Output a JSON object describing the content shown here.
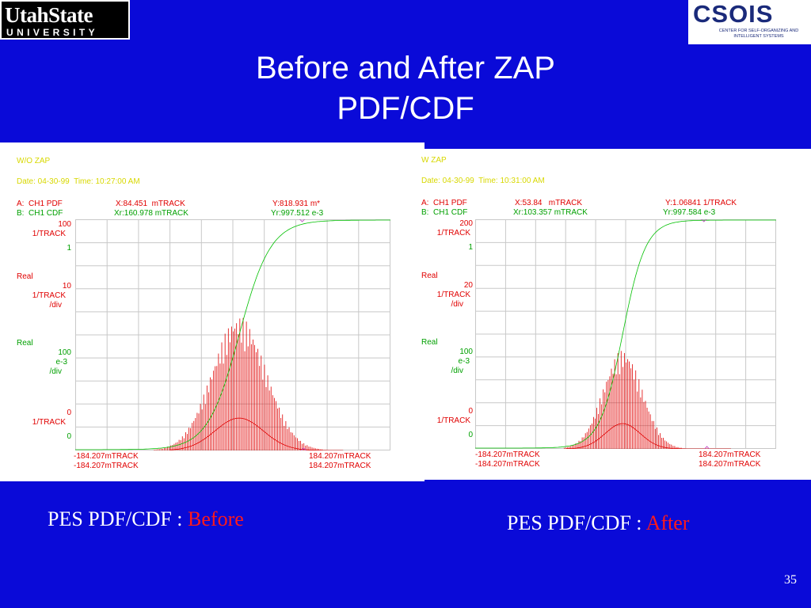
{
  "logos": {
    "left": {
      "line1": "UtahState",
      "line2": "UNIVERSITY"
    },
    "right": {
      "line1": "CSOIS",
      "line2": "CENTER FOR SELF-ORGANIZING AND INTELLIGENT SYSTEMS"
    }
  },
  "slide": {
    "title_line1": "Before and After ZAP",
    "title_line2": "PDF/CDF",
    "page_number": "35"
  },
  "captions": {
    "before_prefix": "PES PDF/CDF : ",
    "before_highlight": "Before",
    "after_prefix": "PES PDF/CDF : ",
    "after_highlight": "After"
  },
  "colors": {
    "background": "#0a0ad8",
    "pdf_trace": "#e00000",
    "cdf_trace": "#00c000",
    "header_text": "#d8d800",
    "caption_highlight": "#ff1a1a"
  },
  "panels": [
    {
      "header": "W/O ZAP",
      "date": "Date: 04-30-99  Time: 10:27:00 AM",
      "a_label": "A:  CH1 PDF",
      "a_x": "X:84.451  mTRACK",
      "a_y": "Y:818.931 m*",
      "b_label": "B:  CH1 CDF",
      "b_x": "Xr:160.978 mTRACK",
      "b_y": "Yr:997.512 e-3",
      "y_top_value": "100",
      "y_top_unit": "1/TRACK",
      "y_one": "1",
      "real_a": "Real",
      "scale_a": "10",
      "scale_a_unit": "1/TRACK",
      "scale_a_div": "/div",
      "real_b": "Real",
      "scale_b": "100",
      "scale_b_unit": "e-3",
      "scale_b_div": "/div",
      "y_zero_a": "0",
      "y_zero_a_unit": "1/TRACK",
      "y_zero_b": "0",
      "x_left_a": "-184.207mTRACK",
      "x_right_a": "184.207mTRACK",
      "x_left_b": "-184.207mTRACK",
      "x_right_b": "184.207mTRACK"
    },
    {
      "header": "W ZAP",
      "date": "Date: 04-30-99  Time: 10:31:00 AM",
      "a_label": "A:  CH1 PDF",
      "a_x": "X:53.84   mTRACK",
      "a_y": "Y:1.06841 1/TRACK",
      "b_label": "B:  CH1 CDF",
      "b_x": "Xr:103.357 mTRACK",
      "b_y": "Yr:997.584 e-3",
      "y_top_value": "200",
      "y_top_unit": "1/TRACK",
      "y_one": "1",
      "real_a": "Real",
      "scale_a": "20",
      "scale_a_unit": "1/TRACK",
      "scale_a_div": "/div",
      "real_b": "Real",
      "scale_b": "100",
      "scale_b_unit": "e-3",
      "scale_b_div": "/div",
      "y_zero_a": "0",
      "y_zero_a_unit": "1/TRACK",
      "y_zero_b": "0",
      "x_left_a": "-184.207mTRACK",
      "x_right_a": "184.207mTRACK",
      "x_left_b": "-184.207mTRACK",
      "x_right_b": "184.207mTRACK"
    }
  ]
}
